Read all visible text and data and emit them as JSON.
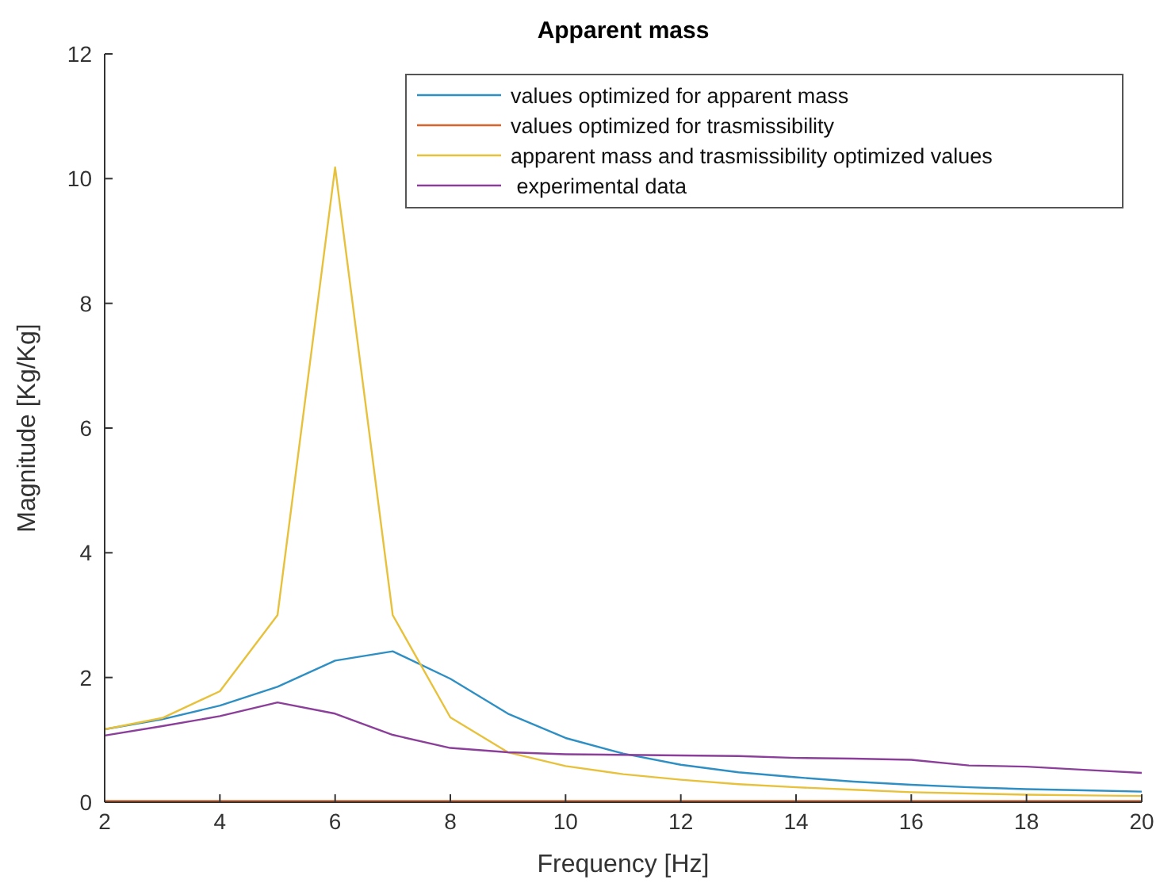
{
  "chart_data": {
    "type": "line",
    "title": "Apparent mass",
    "xlabel": "Frequency [Hz]",
    "ylabel": "Magnitude [Kg/Kg]",
    "x": [
      2,
      3,
      4,
      5,
      6,
      7,
      8,
      9,
      10,
      11,
      12,
      13,
      14,
      15,
      16,
      17,
      18,
      19,
      20
    ],
    "xlim": [
      2,
      20
    ],
    "xticks": [
      2,
      4,
      6,
      8,
      10,
      12,
      14,
      16,
      18,
      20
    ],
    "ylim": [
      0,
      12
    ],
    "yticks": [
      0,
      2,
      4,
      6,
      8,
      10,
      12
    ],
    "grid": false,
    "legend": "top right",
    "marker": "none",
    "line_style": "solid",
    "series": [
      {
        "name": "values optimized for apparent mass",
        "color": "#2e8fc4",
        "values": [
          1.17,
          1.33,
          1.55,
          1.85,
          2.27,
          2.42,
          1.98,
          1.42,
          1.03,
          0.78,
          0.6,
          0.48,
          0.4,
          0.33,
          0.28,
          0.24,
          0.21,
          0.19,
          0.17
        ]
      },
      {
        "name": "values optimized for trasmissibility",
        "color": "#d9632a",
        "values": [
          0.02,
          0.02,
          0.02,
          0.02,
          0.02,
          0.02,
          0.02,
          0.02,
          0.02,
          0.02,
          0.02,
          0.02,
          0.02,
          0.02,
          0.02,
          0.02,
          0.02,
          0.02,
          0.02
        ]
      },
      {
        "name": "apparent mass and trasmissibility optimized values",
        "color": "#e8c13a",
        "values": [
          1.17,
          1.35,
          1.78,
          3.0,
          10.18,
          3.0,
          1.36,
          0.8,
          0.58,
          0.45,
          0.36,
          0.29,
          0.24,
          0.2,
          0.16,
          0.14,
          0.12,
          0.11,
          0.1
        ]
      },
      {
        "name": " experimental data",
        "color": "#8b3f9a",
        "values": [
          1.07,
          1.22,
          1.38,
          1.6,
          1.42,
          1.08,
          0.87,
          0.8,
          0.77,
          0.76,
          0.75,
          0.74,
          0.71,
          0.7,
          0.68,
          0.59,
          0.57,
          0.52,
          0.47
        ]
      }
    ]
  }
}
